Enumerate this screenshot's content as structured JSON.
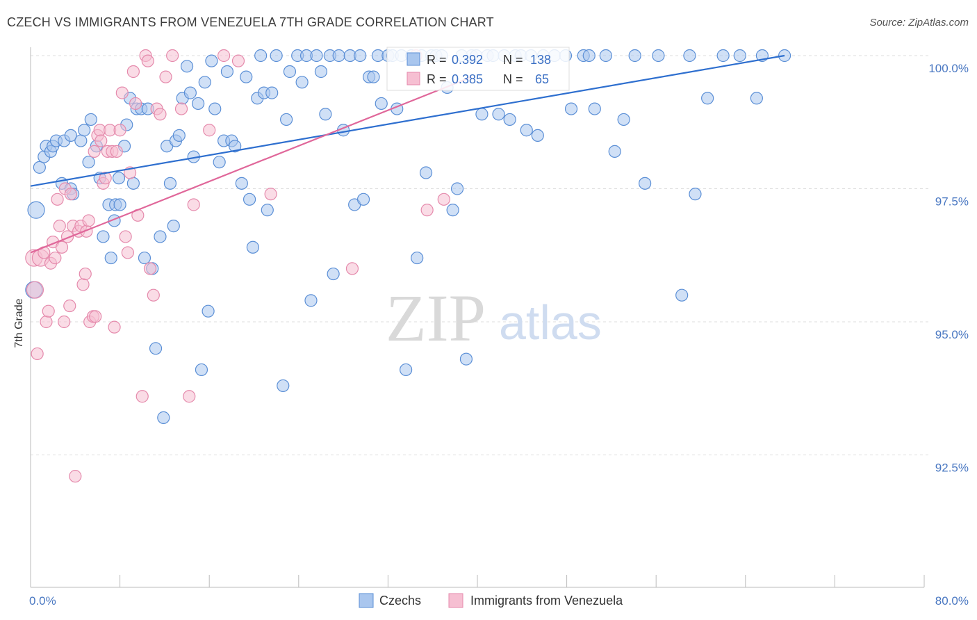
{
  "header": {
    "title": "CZECH VS IMMIGRANTS FROM VENEZUELA 7TH GRADE CORRELATION CHART",
    "source": "Source: ZipAtlas.com"
  },
  "watermark": {
    "zip": "ZIP",
    "atlas": "atlas"
  },
  "colors": {
    "blue_fill": "#a9c6ee",
    "blue_stroke": "#5b8fd6",
    "blue_line": "#2e6fcf",
    "pink_fill": "#f6bfd2",
    "pink_stroke": "#e58aac",
    "pink_line": "#e0679a",
    "tick_label": "#4a78c2",
    "grid": "#dddddd"
  },
  "stats": [
    {
      "r_label": "R =",
      "r_value": "0.392",
      "n_label": "N =",
      "n_value": "138"
    },
    {
      "r_label": "R =",
      "r_value": "0.385",
      "n_label": "N =",
      "n_value": "65"
    }
  ],
  "chart_data": {
    "type": "scatter",
    "ylabel": "7th Grade",
    "xlim": [
      0,
      80
    ],
    "ylim": [
      90.3,
      100.5
    ],
    "x_tick_labels": [
      "0.0%",
      "80.0%"
    ],
    "y_ticks": [
      {
        "value": 100.0,
        "label": "100.0%"
      },
      {
        "value": 97.5,
        "label": "97.5%"
      },
      {
        "value": 95.0,
        "label": "95.0%"
      },
      {
        "value": 92.5,
        "label": "92.5%"
      }
    ],
    "grid": true,
    "legend_position": "bottom-center",
    "series": [
      {
        "name": "Czechs",
        "trend": {
          "x": [
            0,
            67.5
          ],
          "y": [
            97.55,
            100.0
          ]
        },
        "points": [
          [
            0.3,
            95.6
          ],
          [
            0.5,
            97.1
          ],
          [
            0.8,
            97.9
          ],
          [
            1.2,
            98.1
          ],
          [
            1.4,
            98.3
          ],
          [
            1.8,
            98.2
          ],
          [
            2.0,
            98.3
          ],
          [
            2.3,
            98.4
          ],
          [
            2.8,
            97.6
          ],
          [
            3.0,
            98.4
          ],
          [
            3.6,
            97.5
          ],
          [
            3.8,
            97.4
          ],
          [
            3.6,
            98.5
          ],
          [
            4.5,
            98.4
          ],
          [
            4.8,
            98.6
          ],
          [
            5.2,
            98.0
          ],
          [
            5.4,
            98.8
          ],
          [
            5.9,
            98.3
          ],
          [
            6.2,
            97.7
          ],
          [
            6.5,
            96.6
          ],
          [
            7.0,
            97.2
          ],
          [
            7.2,
            96.2
          ],
          [
            7.5,
            96.9
          ],
          [
            7.6,
            97.2
          ],
          [
            7.9,
            97.7
          ],
          [
            8.0,
            97.2
          ],
          [
            8.4,
            98.3
          ],
          [
            8.6,
            98.7
          ],
          [
            8.9,
            99.2
          ],
          [
            9.2,
            97.6
          ],
          [
            9.5,
            99.0
          ],
          [
            9.9,
            99.0
          ],
          [
            10.2,
            96.2
          ],
          [
            10.5,
            99.0
          ],
          [
            10.9,
            96.0
          ],
          [
            11.2,
            94.5
          ],
          [
            11.6,
            96.6
          ],
          [
            11.9,
            93.2
          ],
          [
            12.2,
            98.3
          ],
          [
            12.5,
            97.6
          ],
          [
            12.8,
            96.8
          ],
          [
            13.0,
            98.4
          ],
          [
            13.3,
            98.5
          ],
          [
            13.6,
            99.2
          ],
          [
            14.0,
            99.8
          ],
          [
            14.3,
            99.3
          ],
          [
            14.6,
            98.1
          ],
          [
            15.0,
            99.1
          ],
          [
            15.3,
            94.1
          ],
          [
            15.6,
            99.5
          ],
          [
            15.9,
            95.2
          ],
          [
            16.2,
            99.9
          ],
          [
            16.5,
            99.0
          ],
          [
            16.9,
            98.0
          ],
          [
            17.3,
            98.4
          ],
          [
            17.6,
            99.7
          ],
          [
            18.0,
            98.4
          ],
          [
            18.3,
            98.3
          ],
          [
            18.9,
            97.6
          ],
          [
            19.3,
            99.6
          ],
          [
            19.6,
            97.3
          ],
          [
            19.9,
            96.4
          ],
          [
            20.3,
            99.2
          ],
          [
            20.6,
            100.0
          ],
          [
            20.9,
            99.3
          ],
          [
            21.2,
            97.1
          ],
          [
            21.6,
            99.3
          ],
          [
            22.0,
            100.0
          ],
          [
            22.6,
            93.8
          ],
          [
            22.9,
            98.8
          ],
          [
            23.2,
            99.7
          ],
          [
            23.9,
            100.0
          ],
          [
            24.3,
            99.5
          ],
          [
            24.7,
            100.0
          ],
          [
            25.1,
            95.4
          ],
          [
            25.6,
            100.0
          ],
          [
            26.0,
            99.7
          ],
          [
            26.4,
            98.9
          ],
          [
            26.8,
            100.0
          ],
          [
            27.1,
            95.9
          ],
          [
            27.6,
            100.0
          ],
          [
            28.0,
            98.6
          ],
          [
            28.6,
            100.0
          ],
          [
            29.0,
            97.2
          ],
          [
            29.5,
            100.0
          ],
          [
            29.8,
            97.3
          ],
          [
            30.3,
            99.6
          ],
          [
            30.7,
            99.6
          ],
          [
            31.1,
            100.0
          ],
          [
            31.4,
            99.1
          ],
          [
            32.0,
            100.0
          ],
          [
            32.4,
            100.0
          ],
          [
            32.8,
            99.0
          ],
          [
            33.2,
            100.0
          ],
          [
            33.6,
            94.1
          ],
          [
            34.1,
            100.0
          ],
          [
            34.6,
            96.2
          ],
          [
            35.0,
            100.0
          ],
          [
            35.4,
            97.8
          ],
          [
            35.9,
            100.0
          ],
          [
            36.3,
            100.0
          ],
          [
            36.8,
            100.0
          ],
          [
            37.3,
            99.4
          ],
          [
            37.8,
            97.1
          ],
          [
            38.2,
            97.5
          ],
          [
            38.6,
            100.0
          ],
          [
            39.0,
            94.3
          ],
          [
            39.5,
            100.0
          ],
          [
            39.9,
            100.0
          ],
          [
            40.4,
            98.9
          ],
          [
            40.9,
            100.0
          ],
          [
            41.4,
            100.0
          ],
          [
            41.9,
            98.9
          ],
          [
            42.4,
            100.0
          ],
          [
            42.9,
            98.8
          ],
          [
            43.4,
            100.0
          ],
          [
            43.9,
            100.0
          ],
          [
            44.4,
            98.6
          ],
          [
            44.8,
            100.0
          ],
          [
            45.4,
            98.5
          ],
          [
            45.9,
            100.0
          ],
          [
            46.9,
            100.0
          ],
          [
            47.9,
            100.0
          ],
          [
            48.4,
            99.0
          ],
          [
            49.5,
            100.0
          ],
          [
            50.0,
            100.0
          ],
          [
            50.5,
            99.0
          ],
          [
            51.5,
            100.0
          ],
          [
            52.3,
            98.2
          ],
          [
            53.1,
            98.8
          ],
          [
            54.1,
            100.0
          ],
          [
            55.0,
            97.6
          ],
          [
            56.2,
            100.0
          ],
          [
            58.3,
            95.5
          ],
          [
            59.0,
            100.0
          ],
          [
            59.5,
            97.4
          ],
          [
            60.6,
            99.2
          ],
          [
            62.0,
            100.0
          ],
          [
            63.5,
            100.0
          ],
          [
            65.0,
            99.2
          ],
          [
            65.5,
            100.0
          ],
          [
            67.5,
            100.0
          ]
        ]
      },
      {
        "name": "Immigrants from Venezuela",
        "trend": {
          "x": [
            0,
            39.5
          ],
          "y": [
            96.3,
            99.6
          ]
        },
        "points": [
          [
            0.3,
            96.2
          ],
          [
            0.4,
            95.6
          ],
          [
            0.6,
            94.4
          ],
          [
            0.9,
            96.2
          ],
          [
            1.2,
            96.3
          ],
          [
            1.4,
            95.0
          ],
          [
            1.6,
            95.2
          ],
          [
            1.8,
            96.1
          ],
          [
            2.0,
            96.5
          ],
          [
            2.2,
            96.2
          ],
          [
            2.4,
            97.3
          ],
          [
            2.6,
            96.8
          ],
          [
            2.8,
            96.4
          ],
          [
            3.0,
            95.0
          ],
          [
            3.1,
            97.5
          ],
          [
            3.3,
            96.6
          ],
          [
            3.5,
            95.3
          ],
          [
            3.6,
            97.4
          ],
          [
            3.8,
            96.8
          ],
          [
            4.0,
            92.1
          ],
          [
            4.3,
            96.7
          ],
          [
            4.5,
            96.8
          ],
          [
            4.7,
            95.7
          ],
          [
            4.9,
            95.9
          ],
          [
            5.0,
            96.7
          ],
          [
            5.2,
            96.9
          ],
          [
            5.3,
            95.0
          ],
          [
            5.6,
            95.1
          ],
          [
            5.7,
            98.2
          ],
          [
            5.8,
            95.1
          ],
          [
            6.0,
            98.5
          ],
          [
            6.2,
            98.6
          ],
          [
            6.3,
            98.4
          ],
          [
            6.5,
            97.6
          ],
          [
            6.7,
            97.7
          ],
          [
            6.9,
            98.2
          ],
          [
            7.1,
            98.6
          ],
          [
            7.3,
            98.2
          ],
          [
            7.5,
            94.9
          ],
          [
            7.7,
            98.2
          ],
          [
            8.0,
            98.6
          ],
          [
            8.2,
            99.3
          ],
          [
            8.5,
            96.6
          ],
          [
            8.7,
            96.3
          ],
          [
            8.9,
            97.8
          ],
          [
            9.2,
            99.7
          ],
          [
            9.4,
            99.1
          ],
          [
            9.6,
            97.0
          ],
          [
            10.0,
            93.6
          ],
          [
            10.3,
            100.0
          ],
          [
            10.5,
            99.9
          ],
          [
            10.7,
            96.0
          ],
          [
            11.0,
            95.5
          ],
          [
            11.3,
            99.0
          ],
          [
            11.6,
            98.9
          ],
          [
            12.1,
            99.6
          ],
          [
            12.7,
            100.0
          ],
          [
            13.5,
            99.0
          ],
          [
            14.2,
            93.6
          ],
          [
            14.6,
            97.2
          ],
          [
            16.0,
            98.6
          ],
          [
            17.3,
            100.0
          ],
          [
            18.6,
            99.9
          ],
          [
            21.5,
            97.4
          ],
          [
            28.8,
            96.0
          ],
          [
            34.5,
            100.0
          ],
          [
            35.5,
            97.1
          ],
          [
            37.0,
            97.3
          ]
        ]
      }
    ]
  },
  "legend": [
    {
      "label": "Czechs"
    },
    {
      "label": "Immigrants from Venezuela"
    }
  ]
}
